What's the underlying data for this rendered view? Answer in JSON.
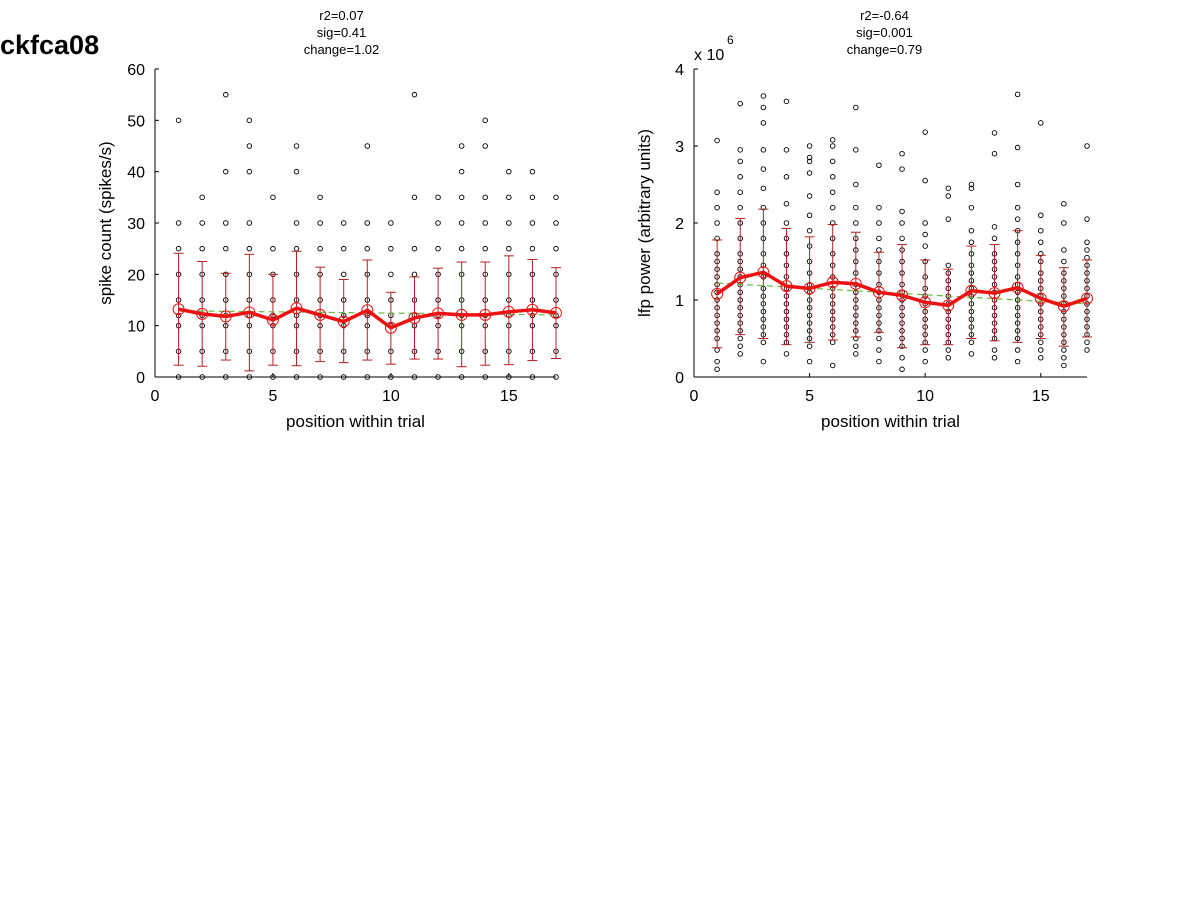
{
  "figure_label": "ckfca08",
  "colors": {
    "raw_points": "#000000",
    "mean_line": "#ee1111",
    "error_bars": "#b32020",
    "fit_line": "#66bb44"
  },
  "chart_data": [
    {
      "type": "scatter",
      "title": [
        "r2=0.07",
        "sig=0.41",
        "change=1.02"
      ],
      "xlabel": "position within trial",
      "ylabel": "spike count (spikes/s)",
      "exponent_label": "",
      "exponent_sup": "",
      "xlim": [
        0,
        17
      ],
      "ylim": [
        0,
        60
      ],
      "xticks": [
        0,
        5,
        10,
        15
      ],
      "yticks": [
        0,
        10,
        20,
        30,
        40,
        50,
        60
      ],
      "grid": false,
      "x": [
        1,
        2,
        3,
        4,
        5,
        6,
        7,
        8,
        9,
        10,
        11,
        12,
        13,
        14,
        15,
        16,
        17
      ],
      "raw": [
        [
          0,
          5,
          10,
          12,
          15,
          20,
          25,
          30,
          50
        ],
        [
          0,
          5,
          10,
          12,
          15,
          20,
          25,
          30,
          35
        ],
        [
          0,
          5,
          10,
          12,
          15,
          20,
          25,
          30,
          40,
          55
        ],
        [
          0,
          5,
          10,
          12,
          15,
          20,
          25,
          30,
          40,
          45,
          50
        ],
        [
          0,
          5,
          10,
          12,
          15,
          20,
          25,
          35
        ],
        [
          0,
          5,
          10,
          12,
          15,
          20,
          25,
          30,
          40,
          45
        ],
        [
          0,
          5,
          10,
          12,
          15,
          20,
          25,
          30,
          35
        ],
        [
          0,
          5,
          10,
          12,
          15,
          20,
          25,
          30
        ],
        [
          0,
          5,
          10,
          12,
          15,
          20,
          25,
          30,
          45
        ],
        [
          0,
          5,
          10,
          12,
          15,
          20,
          25,
          30
        ],
        [
          0,
          5,
          10,
          12,
          15,
          20,
          25,
          35,
          55
        ],
        [
          0,
          5,
          10,
          12,
          15,
          20,
          25,
          30,
          35
        ],
        [
          0,
          5,
          10,
          12,
          15,
          20,
          25,
          30,
          35,
          40,
          45
        ],
        [
          0,
          5,
          10,
          12,
          15,
          20,
          25,
          30,
          35,
          45,
          50
        ],
        [
          0,
          5,
          10,
          12,
          15,
          20,
          25,
          30,
          35,
          40
        ],
        [
          0,
          5,
          10,
          12,
          15,
          20,
          25,
          30,
          35,
          40
        ],
        [
          0,
          5,
          10,
          12,
          15,
          20,
          25,
          30,
          35
        ]
      ],
      "mean": [
        13.2,
        12.3,
        11.8,
        12.6,
        11.1,
        13.4,
        12.1,
        10.8,
        13.0,
        9.6,
        11.5,
        12.4,
        12.1,
        12.1,
        12.7,
        13.1,
        12.5
      ],
      "err_low": [
        2.3,
        2.1,
        3.3,
        1.2,
        2.3,
        2.2,
        3.0,
        2.8,
        3.3,
        2.5,
        3.5,
        3.5,
        2.0,
        2.3,
        2.4,
        3.2,
        3.6
      ],
      "err_high": [
        24.1,
        22.5,
        20.2,
        23.9,
        20.0,
        24.5,
        21.4,
        19.0,
        22.8,
        16.5,
        19.5,
        21.2,
        22.4,
        22.4,
        23.6,
        22.9,
        21.3
      ],
      "fit": [
        12.9,
        12.1
      ]
    },
    {
      "type": "scatter",
      "title": [
        "r2=-0.64",
        "sig=0.001",
        "change=0.79"
      ],
      "xlabel": "position within trial",
      "ylabel": "lfp power (arbitrary units)",
      "exponent_label": "x 10",
      "exponent_sup": "6",
      "xlim": [
        0,
        17
      ],
      "ylim": [
        0,
        4
      ],
      "xticks": [
        0,
        5,
        10,
        15
      ],
      "yticks": [
        0,
        1,
        2,
        3,
        4
      ],
      "grid": false,
      "x": [
        1,
        2,
        3,
        4,
        5,
        6,
        7,
        8,
        9,
        10,
        11,
        12,
        13,
        14,
        15,
        16,
        17
      ],
      "raw": [
        [
          0.1,
          0.2,
          0.35,
          0.5,
          0.6,
          0.7,
          0.8,
          0.9,
          1.0,
          1.1,
          1.2,
          1.3,
          1.4,
          1.5,
          1.6,
          1.8,
          2.0,
          2.2,
          2.4,
          3.07
        ],
        [
          0.3,
          0.4,
          0.5,
          0.6,
          0.7,
          0.8,
          0.9,
          1.0,
          1.1,
          1.2,
          1.3,
          1.4,
          1.5,
          1.6,
          1.8,
          2.0,
          2.2,
          2.4,
          2.6,
          2.8,
          2.95,
          3.55
        ],
        [
          0.2,
          0.45,
          0.55,
          0.65,
          0.75,
          0.85,
          0.95,
          1.05,
          1.15,
          1.3,
          1.45,
          1.6,
          1.8,
          2.0,
          2.2,
          2.45,
          2.7,
          2.95,
          3.3,
          3.5,
          3.65
        ],
        [
          0.3,
          0.45,
          0.55,
          0.65,
          0.75,
          0.85,
          0.95,
          1.05,
          1.15,
          1.3,
          1.45,
          1.6,
          1.8,
          2.0,
          2.25,
          2.6,
          2.95,
          3.58
        ],
        [
          0.2,
          0.4,
          0.5,
          0.6,
          0.7,
          0.8,
          0.9,
          1.0,
          1.1,
          1.2,
          1.35,
          1.5,
          1.7,
          1.9,
          2.1,
          2.35,
          2.65,
          2.8,
          2.85,
          3.0
        ],
        [
          0.15,
          0.45,
          0.55,
          0.65,
          0.75,
          0.85,
          0.95,
          1.05,
          1.15,
          1.3,
          1.45,
          1.6,
          1.8,
          2.0,
          2.2,
          2.4,
          2.6,
          2.8,
          3.0,
          3.08
        ],
        [
          0.3,
          0.4,
          0.5,
          0.6,
          0.7,
          0.8,
          0.9,
          1.0,
          1.1,
          1.2,
          1.35,
          1.5,
          1.65,
          1.8,
          2.0,
          2.2,
          2.5,
          2.95,
          3.5
        ],
        [
          0.2,
          0.35,
          0.5,
          0.6,
          0.7,
          0.8,
          0.9,
          1.0,
          1.1,
          1.2,
          1.35,
          1.5,
          1.65,
          1.8,
          2.0,
          2.2,
          2.75
        ],
        [
          0.1,
          0.25,
          0.4,
          0.5,
          0.6,
          0.7,
          0.8,
          0.9,
          1.0,
          1.1,
          1.2,
          1.35,
          1.5,
          1.65,
          1.8,
          2.0,
          2.15,
          2.7,
          2.9
        ],
        [
          0.2,
          0.35,
          0.45,
          0.55,
          0.65,
          0.75,
          0.85,
          0.95,
          1.05,
          1.15,
          1.3,
          1.5,
          1.7,
          1.85,
          2.0,
          2.55,
          3.18
        ],
        [
          0.25,
          0.35,
          0.45,
          0.55,
          0.65,
          0.75,
          0.85,
          0.95,
          1.05,
          1.15,
          1.25,
          1.35,
          1.45,
          2.05,
          2.35,
          2.45
        ],
        [
          0.3,
          0.45,
          0.55,
          0.65,
          0.75,
          0.85,
          0.95,
          1.05,
          1.15,
          1.25,
          1.35,
          1.45,
          1.6,
          1.75,
          1.9,
          2.2,
          2.45,
          2.5
        ],
        [
          0.25,
          0.35,
          0.5,
          0.6,
          0.7,
          0.8,
          0.9,
          1.0,
          1.1,
          1.2,
          1.3,
          1.4,
          1.5,
          1.6,
          1.8,
          1.95,
          2.9,
          3.17
        ],
        [
          0.2,
          0.35,
          0.5,
          0.6,
          0.7,
          0.8,
          0.9,
          1.0,
          1.1,
          1.2,
          1.3,
          1.45,
          1.6,
          1.75,
          1.9,
          2.05,
          2.2,
          2.5,
          2.98,
          3.67
        ],
        [
          0.25,
          0.35,
          0.45,
          0.55,
          0.65,
          0.75,
          0.85,
          0.95,
          1.05,
          1.15,
          1.25,
          1.35,
          1.5,
          1.6,
          1.75,
          1.9,
          2.1,
          3.3
        ],
        [
          0.15,
          0.25,
          0.35,
          0.45,
          0.55,
          0.65,
          0.75,
          0.85,
          0.95,
          1.05,
          1.15,
          1.25,
          1.35,
          1.5,
          1.65,
          2.0,
          2.25
        ],
        [
          0.35,
          0.45,
          0.55,
          0.65,
          0.75,
          0.85,
          0.95,
          1.05,
          1.15,
          1.25,
          1.35,
          1.45,
          1.55,
          1.65,
          1.75,
          2.05,
          3.0
        ]
      ],
      "mean": [
        1.08,
        1.29,
        1.36,
        1.18,
        1.15,
        1.23,
        1.21,
        1.1,
        1.06,
        0.97,
        0.93,
        1.12,
        1.09,
        1.16,
        1.02,
        0.92,
        1.02
      ],
      "err_low": [
        0.38,
        0.55,
        0.5,
        0.42,
        0.45,
        0.48,
        0.52,
        0.58,
        0.38,
        0.42,
        0.42,
        0.5,
        0.47,
        0.45,
        0.5,
        0.4,
        0.52
      ],
      "err_high": [
        1.78,
        2.06,
        2.18,
        1.93,
        1.82,
        1.98,
        1.88,
        1.62,
        1.72,
        1.52,
        1.4,
        1.7,
        1.72,
        1.9,
        1.58,
        1.42,
        1.52
      ],
      "fit": [
        1.22,
        0.95
      ]
    }
  ]
}
